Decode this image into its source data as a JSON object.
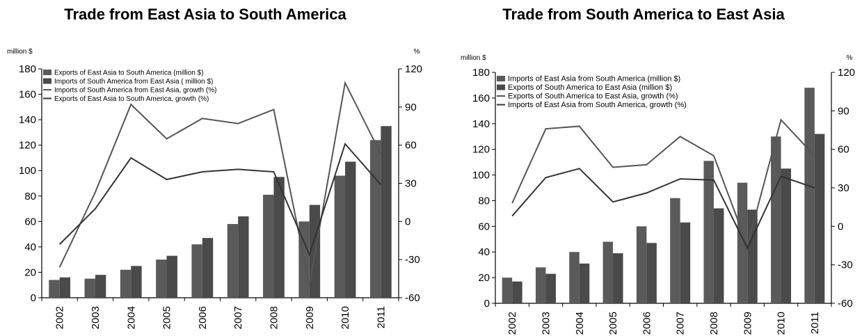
{
  "chart_data": [
    {
      "type": "bar",
      "title": "Trade from East Asia to South America",
      "categories": [
        "2002",
        "2003",
        "2004",
        "2005",
        "2006",
        "2007",
        "2008",
        "2009",
        "2010",
        "2011"
      ],
      "ylabel_left": "million $",
      "ylabel_right": "%",
      "ylim_left": [
        0,
        180
      ],
      "ylim_right": [
        -60,
        120
      ],
      "yticks_left": [
        "0",
        "20",
        "40",
        "60",
        "80",
        "100",
        "120",
        "140",
        "160",
        "180"
      ],
      "yticks_right": [
        "-60",
        "-30",
        "0",
        "30",
        "60",
        "90",
        "120"
      ],
      "bar_series": [
        {
          "name": "Exports of East Asia to South America (million $)",
          "color": "#5a5a5a",
          "values": [
            14,
            15,
            22,
            30,
            42,
            58,
            81,
            60,
            96,
            124
          ]
        },
        {
          "name": "Imports of South America from East Asia ( million $)",
          "color": "#4a4a4a",
          "values": [
            16,
            18,
            25,
            33,
            47,
            64,
            95,
            73,
            107,
            135
          ]
        }
      ],
      "line_series": [
        {
          "name": "Imports of South America from East Asia, growth (%)",
          "color": "#555555",
          "values": [
            -36,
            23,
            92,
            65,
            81,
            77,
            88,
            -50,
            109,
            53
          ]
        },
        {
          "name": "Exports of East Asia to South America, growth (%)",
          "color": "#333333",
          "values": [
            -18,
            10,
            50,
            33,
            39,
            41,
            39,
            -26,
            61,
            29
          ]
        }
      ],
      "legend_position": "top-left",
      "grid": false
    },
    {
      "type": "bar",
      "title": "Trade from South America to East Asia",
      "categories": [
        "2002",
        "2003",
        "2004",
        "2005",
        "2006",
        "2007",
        "2008",
        "2009",
        "2010",
        "2011"
      ],
      "ylabel_left": "million $",
      "ylabel_right": "%",
      "ylim_left": [
        0,
        180
      ],
      "ylim_right": [
        -60,
        120
      ],
      "yticks_left": [
        "0",
        "20",
        "40",
        "60",
        "80",
        "100",
        "120",
        "140",
        "160",
        "180"
      ],
      "yticks_right": [
        "-60",
        "-30",
        "0",
        "30",
        "60",
        "90",
        "120"
      ],
      "bar_series": [
        {
          "name": "Imports of East Asia from South America (million $)",
          "color": "#5a5a5a",
          "values": [
            20,
            28,
            40,
            48,
            60,
            82,
            111,
            94,
            130,
            168
          ]
        },
        {
          "name": "Exports of South America to East Asia (million $)",
          "color": "#4a4a4a",
          "values": [
            17,
            23,
            31,
            39,
            47,
            63,
            74,
            73,
            105,
            132
          ]
        }
      ],
      "line_series": [
        {
          "name": "Exports of South America to East Asia, growth (%)",
          "color": "#555555",
          "values": [
            18,
            76,
            78,
            46,
            48,
            70,
            55,
            -15,
            83,
            55
          ]
        },
        {
          "name": "Imports of East Asia from South America, growth (%)",
          "color": "#333333",
          "values": [
            8,
            38,
            45,
            19,
            26,
            37,
            36,
            -17,
            39,
            30
          ]
        }
      ],
      "legend_position": "top-left",
      "grid": false
    }
  ]
}
